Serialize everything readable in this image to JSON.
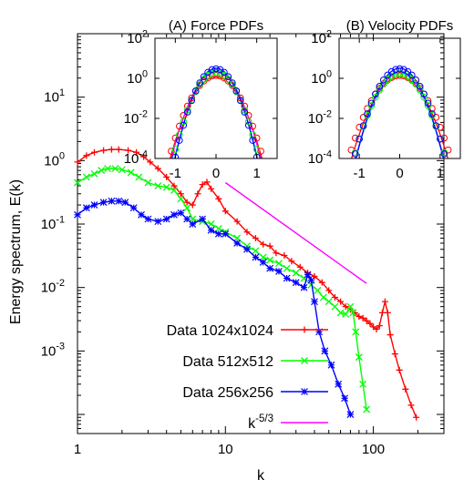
{
  "colors": {
    "data_1024": "#ff0000",
    "data_512": "#00ff00",
    "data_256": "#0000ff",
    "power_law": "#ff00ff",
    "fit_cyan": "#00e5ee",
    "axes": "#000000"
  },
  "chart_data": [
    {
      "id": "main",
      "type": "line",
      "xlabel": "k",
      "ylabel": "Energy spectrum, E(k)",
      "xscale": "log",
      "yscale": "log",
      "xlim": [
        1,
        300
      ],
      "ylim": [
        5e-05,
        100
      ],
      "xticks": [
        {
          "v": 1,
          "label": "1"
        },
        {
          "v": 10,
          "label": "10"
        },
        {
          "v": 100,
          "label": "100"
        }
      ],
      "yticks": [
        {
          "v": 0.001,
          "base": "10",
          "exp": "-3"
        },
        {
          "v": 0.01,
          "base": "10",
          "exp": "-2"
        },
        {
          "v": 0.1,
          "base": "10",
          "exp": "-1"
        },
        {
          "v": 1,
          "base": "10",
          "exp": "0"
        },
        {
          "v": 10,
          "base": "10",
          "exp": "1"
        }
      ],
      "legend_position": "bottom-left",
      "series": [
        {
          "name": "Data 1024x1024",
          "color_key": "data_1024",
          "marker": "plus",
          "points": [
            [
              1,
              0.95
            ],
            [
              1.15,
              1.2
            ],
            [
              1.3,
              1.35
            ],
            [
              1.5,
              1.45
            ],
            [
              1.7,
              1.5
            ],
            [
              1.9,
              1.5
            ],
            [
              2.2,
              1.45
            ],
            [
              2.5,
              1.35
            ],
            [
              2.8,
              1.15
            ],
            [
              3.1,
              0.95
            ],
            [
              3.5,
              0.75
            ],
            [
              4,
              0.55
            ],
            [
              4.5,
              0.4
            ],
            [
              5,
              0.3
            ],
            [
              5.5,
              0.22
            ],
            [
              6,
              0.2
            ],
            [
              6.5,
              0.3
            ],
            [
              7,
              0.42
            ],
            [
              7.5,
              0.46
            ],
            [
              8,
              0.36
            ],
            [
              9,
              0.25
            ],
            [
              10,
              0.16
            ],
            [
              12,
              0.11
            ],
            [
              14,
              0.075
            ],
            [
              16,
              0.06
            ],
            [
              18,
              0.048
            ],
            [
              20,
              0.045
            ],
            [
              22,
              0.035
            ],
            [
              25,
              0.032
            ],
            [
              28,
              0.026
            ],
            [
              32,
              0.021
            ],
            [
              36,
              0.017
            ],
            [
              40,
              0.015
            ],
            [
              45,
              0.012
            ],
            [
              50,
              0.009
            ],
            [
              55,
              0.007
            ],
            [
              60,
              0.006
            ],
            [
              65,
              0.005
            ],
            [
              70,
              0.0045
            ],
            [
              75,
              0.004
            ],
            [
              80,
              0.0035
            ],
            [
              85,
              0.0033
            ],
            [
              90,
              0.003
            ],
            [
              95,
              0.0027
            ],
            [
              100,
              0.0024
            ],
            [
              105,
              0.0022
            ],
            [
              110,
              0.0025
            ],
            [
              115,
              0.004
            ],
            [
              120,
              0.006
            ],
            [
              125,
              0.004
            ],
            [
              130,
              0.0018
            ],
            [
              140,
              0.0009
            ],
            [
              150,
              0.0005
            ],
            [
              165,
              0.00025
            ],
            [
              180,
              0.00014
            ],
            [
              195,
              9e-05
            ]
          ]
        },
        {
          "name": "Data 512x512",
          "color_key": "data_512",
          "marker": "cross",
          "points": [
            [
              1,
              0.45
            ],
            [
              1.15,
              0.55
            ],
            [
              1.3,
              0.62
            ],
            [
              1.45,
              0.7
            ],
            [
              1.6,
              0.75
            ],
            [
              1.8,
              0.75
            ],
            [
              2,
              0.72
            ],
            [
              2.3,
              0.65
            ],
            [
              2.6,
              0.55
            ],
            [
              3,
              0.45
            ],
            [
              3.5,
              0.4
            ],
            [
              4,
              0.38
            ],
            [
              4.5,
              0.34
            ],
            [
              5,
              0.25
            ],
            [
              5.5,
              0.18
            ],
            [
              6,
              0.12
            ],
            [
              7,
              0.11
            ],
            [
              8,
              0.1
            ],
            [
              9,
              0.085
            ],
            [
              10,
              0.075
            ],
            [
              12,
              0.06
            ],
            [
              14,
              0.045
            ],
            [
              16,
              0.038
            ],
            [
              18,
              0.03
            ],
            [
              20,
              0.027
            ],
            [
              23,
              0.024
            ],
            [
              26,
              0.02
            ],
            [
              30,
              0.017
            ],
            [
              34,
              0.014
            ],
            [
              38,
              0.011
            ],
            [
              42,
              0.009
            ],
            [
              46,
              0.007
            ],
            [
              50,
              0.006
            ],
            [
              55,
              0.005
            ],
            [
              60,
              0.004
            ],
            [
              65,
              0.0038
            ],
            [
              70,
              0.005
            ],
            [
              73,
              0.004
            ],
            [
              76,
              0.002
            ],
            [
              80,
              0.0008
            ],
            [
              85,
              0.0003
            ],
            [
              90,
              0.00012
            ]
          ]
        },
        {
          "name": "Data 256x256",
          "color_key": "data_256",
          "marker": "star",
          "points": [
            [
              1,
              0.14
            ],
            [
              1.15,
              0.18
            ],
            [
              1.3,
              0.2
            ],
            [
              1.5,
              0.22
            ],
            [
              1.7,
              0.23
            ],
            [
              1.9,
              0.23
            ],
            [
              2.1,
              0.22
            ],
            [
              2.4,
              0.18
            ],
            [
              2.7,
              0.14
            ],
            [
              3,
              0.12
            ],
            [
              3.5,
              0.11
            ],
            [
              4,
              0.12
            ],
            [
              4.5,
              0.14
            ],
            [
              5,
              0.15
            ],
            [
              5.5,
              0.12
            ],
            [
              6,
              0.1
            ],
            [
              7,
              0.12
            ],
            [
              8,
              0.08
            ],
            [
              9,
              0.07
            ],
            [
              10,
              0.07
            ],
            [
              12,
              0.05
            ],
            [
              14,
              0.04
            ],
            [
              16,
              0.03
            ],
            [
              18,
              0.025
            ],
            [
              20,
              0.02
            ],
            [
              23,
              0.018
            ],
            [
              26,
              0.014
            ],
            [
              30,
              0.012
            ],
            [
              34,
              0.01
            ],
            [
              36,
              0.016
            ],
            [
              38,
              0.013
            ],
            [
              40,
              0.006
            ],
            [
              43,
              0.002
            ],
            [
              47,
              0.001
            ],
            [
              52,
              0.0006
            ],
            [
              58,
              0.0003
            ],
            [
              64,
              0.00018
            ],
            [
              70,
              0.0001
            ]
          ]
        },
        {
          "name": "k-5/3",
          "legend_base": "k",
          "legend_exp": "-5/3",
          "color_key": "power_law",
          "marker": "none",
          "points": [
            [
              10,
              0.45
            ],
            [
              90,
              0.0116
            ]
          ]
        }
      ]
    },
    {
      "id": "inset_force",
      "type": "scatter",
      "title": "(A) Force PDFs",
      "yscale": "log",
      "xlim": [
        -1.5,
        1.5
      ],
      "ylim": [
        0.0001,
        100
      ],
      "xticks": [
        {
          "v": -1,
          "label": "-1"
        },
        {
          "v": 0,
          "label": "0"
        },
        {
          "v": 1,
          "label": "1"
        }
      ],
      "yticks": [
        {
          "v": 0.0001,
          "base": "10",
          "exp": "-4"
        },
        {
          "v": 0.01,
          "base": "10",
          "exp": "-2"
        },
        {
          "v": 1,
          "base": "10",
          "exp": "0"
        },
        {
          "v": 100,
          "base": "10",
          "exp": "2"
        }
      ],
      "series": [
        {
          "color_key": "data_1024",
          "peak": 1.4,
          "sigma": 0.5,
          "n": 4.5
        },
        {
          "color_key": "data_512",
          "peak": 2,
          "sigma": 0.38,
          "n": 3.2
        },
        {
          "color_key": "data_256",
          "peak": 3,
          "sigma": 0.32,
          "n": 2.6
        }
      ],
      "fits": [
        {
          "color_key": "data_1024",
          "peak": 1.2,
          "sigma": 0.52,
          "n": 5
        },
        {
          "color_key": "power_law",
          "peak": 2.2,
          "sigma": 0.34,
          "n": 2.4
        },
        {
          "color_key": "fit_cyan",
          "peak": 2.6,
          "sigma": 0.3,
          "n": 2.2
        },
        {
          "color_key": "data_256",
          "peak": 3.2,
          "sigma": 0.28,
          "n": 2
        }
      ]
    },
    {
      "id": "inset_velocity",
      "type": "scatter",
      "title": "(B) Velocity PDFs",
      "yscale": "log",
      "xlim": [
        -1.5,
        1.5
      ],
      "ylim": [
        0.0001,
        100
      ],
      "xticks": [
        {
          "v": -1,
          "label": "-1"
        },
        {
          "v": 0,
          "label": "0"
        },
        {
          "v": 1,
          "label": "1"
        }
      ],
      "yticks": [
        {
          "v": 0.0001,
          "base": "10",
          "exp": "-4"
        },
        {
          "v": 0.01,
          "base": "10",
          "exp": "-2"
        },
        {
          "v": 1,
          "base": "10",
          "exp": "0"
        },
        {
          "v": 100,
          "base": "10",
          "exp": "2"
        }
      ],
      "series": [
        {
          "color_key": "data_1024",
          "peak": 1.4,
          "sigma": 0.55,
          "n": 4.5
        },
        {
          "color_key": "data_512",
          "peak": 1.7,
          "sigma": 0.42,
          "n": 3.3
        },
        {
          "color_key": "data_256",
          "peak": 3.0,
          "sigma": 0.33,
          "n": 2.2
        }
      ],
      "fits": [
        {
          "color_key": "data_1024",
          "peak": 1.2,
          "sigma": 0.55,
          "n": 5
        },
        {
          "color_key": "power_law",
          "peak": 2.0,
          "sigma": 0.34,
          "n": 2.4
        },
        {
          "color_key": "fit_cyan",
          "peak": 1.8,
          "sigma": 0.38,
          "n": 3
        },
        {
          "color_key": "data_256",
          "peak": 3.2,
          "sigma": 0.3,
          "n": 2
        }
      ]
    }
  ]
}
